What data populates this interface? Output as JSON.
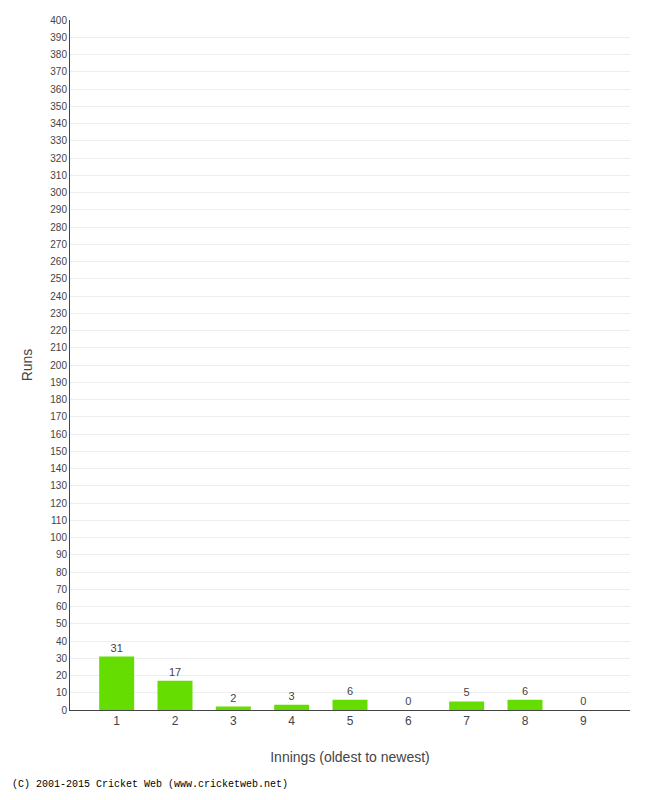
{
  "chart_data": {
    "type": "bar",
    "categories": [
      "1",
      "2",
      "3",
      "4",
      "5",
      "6",
      "7",
      "8",
      "9"
    ],
    "values": [
      31,
      17,
      2,
      3,
      6,
      0,
      5,
      6,
      0
    ],
    "color": "#66dd00",
    "xlabel": "Innings (oldest to newest)",
    "ylabel": "Runs",
    "ylim": [
      0,
      400
    ],
    "yticks": [
      0,
      10,
      20,
      30,
      40,
      50,
      60,
      70,
      80,
      90,
      100,
      110,
      120,
      130,
      140,
      150,
      160,
      170,
      180,
      190,
      200,
      210,
      220,
      230,
      240,
      250,
      260,
      270,
      280,
      290,
      300,
      310,
      320,
      330,
      340,
      350,
      360,
      370,
      380,
      390,
      400
    ],
    "grid": true,
    "data_labels": true,
    "annotations": [
      "(C) 2001-2015 Cricket Web (www.cricketweb.net)"
    ]
  }
}
